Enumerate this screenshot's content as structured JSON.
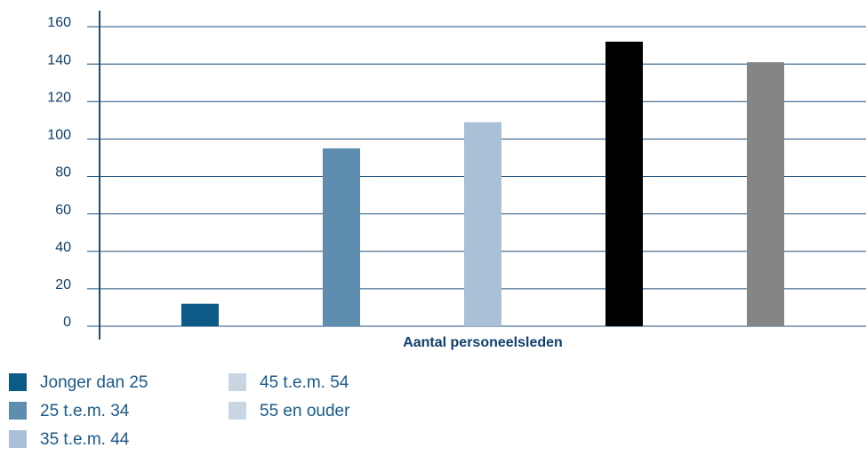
{
  "chart_data": {
    "type": "bar",
    "x_label": "Aantal personeelsleden",
    "series": [
      {
        "name": "Jonger dan 25",
        "color": "#0d5a86",
        "legend_color": "#0d5a86",
        "values": [
          12
        ]
      },
      {
        "name": "25 t.e.m. 34",
        "color": "#5e8db0",
        "legend_color": "#5e8db0",
        "values": [
          95
        ]
      },
      {
        "name": "35 t.e.m. 44",
        "color": "#aac0d6",
        "legend_color": "#aac0d6",
        "values": [
          109
        ]
      },
      {
        "name": "45 t.e.m. 54",
        "color": "#000000",
        "legend_color": "#c8d5e2",
        "values": [
          152
        ]
      },
      {
        "name": "55 en ouder",
        "color": "#858585",
        "legend_color": "#c8d5e2",
        "values": [
          141
        ]
      }
    ],
    "ylim": [
      0,
      160
    ],
    "yticks": [
      0,
      20,
      40,
      60,
      80,
      100,
      120,
      140,
      160
    ],
    "grid": true
  }
}
